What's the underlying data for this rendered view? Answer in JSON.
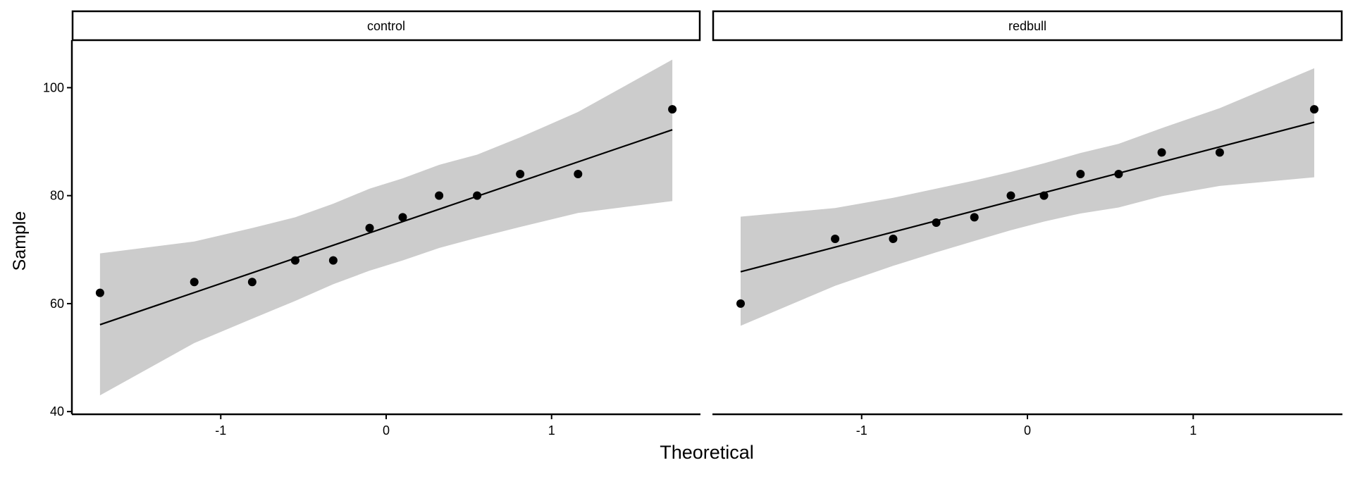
{
  "chart_data": {
    "type": "scatter",
    "subtype": "qq-plot",
    "xlabel": "Theoretical",
    "ylabel": "Sample",
    "xlim": [
      -1.9,
      1.9
    ],
    "ylim": [
      39.5,
      108.8
    ],
    "x_ticks": [
      -1,
      0,
      1
    ],
    "x_tick_labels": [
      "-1",
      "0",
      "1"
    ],
    "y_ticks": [
      40,
      60,
      80,
      100
    ],
    "y_tick_labels": [
      "40",
      "60",
      "80",
      "100"
    ],
    "grid": false,
    "colors": {
      "points": "#000000",
      "line": "#000000",
      "band": "#cccccc"
    },
    "panels": [
      {
        "strip_label": "control",
        "theoretical": [
          -1.73,
          -1.16,
          -0.81,
          -0.55,
          -0.32,
          -0.1,
          0.1,
          0.32,
          0.55,
          0.81,
          1.16,
          1.73
        ],
        "sample": [
          62,
          64,
          64,
          68,
          68,
          74,
          76,
          80,
          80,
          84,
          84,
          96
        ],
        "line": {
          "x": [
            -1.73,
            1.73
          ],
          "y": [
            56.1,
            92.2
          ]
        },
        "band_upper": [
          69.3,
          71.5,
          74.0,
          76.0,
          78.5,
          81.3,
          83.2,
          85.7,
          87.6,
          90.8,
          95.5,
          105.2
        ],
        "band_lower": [
          43.0,
          52.7,
          57.2,
          60.5,
          63.6,
          66.1,
          68.0,
          70.3,
          72.2,
          74.2,
          76.8,
          79.0
        ]
      },
      {
        "strip_label": "redbull",
        "theoretical": [
          -1.73,
          -1.16,
          -0.81,
          -0.55,
          -0.32,
          -0.1,
          0.1,
          0.32,
          0.55,
          0.81,
          1.16,
          1.73
        ],
        "sample": [
          60,
          72,
          72,
          75,
          76,
          80,
          80,
          84,
          84,
          88,
          88,
          96
        ],
        "line": {
          "x": [
            -1.73,
            1.73
          ],
          "y": [
            65.9,
            93.6
          ]
        },
        "band_upper": [
          76.1,
          77.7,
          79.6,
          81.3,
          82.8,
          84.4,
          86.0,
          87.9,
          89.6,
          92.5,
          96.2,
          103.6
        ],
        "band_lower": [
          55.9,
          63.3,
          67.0,
          69.5,
          71.6,
          73.6,
          75.2,
          76.7,
          77.8,
          79.9,
          81.8,
          83.4
        ]
      }
    ]
  }
}
